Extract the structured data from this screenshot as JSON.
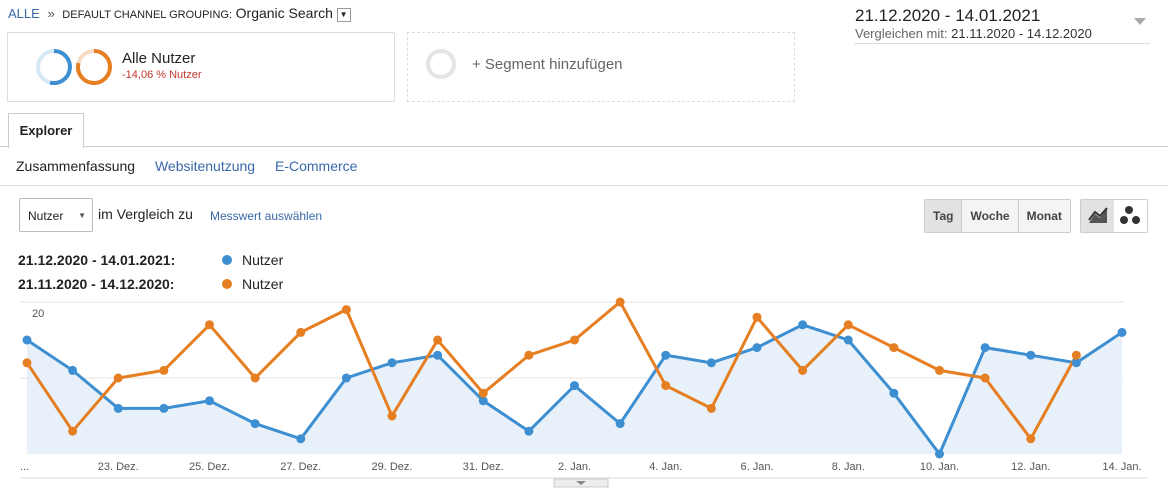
{
  "breadcrumb": {
    "root": "ALLE",
    "separator": "»",
    "dimension": "DEFAULT CHANNEL GROUPING:",
    "value": "Organic Search"
  },
  "segments": {
    "active": {
      "name": "Alle Nutzer",
      "change": "-14,06 % Nutzer"
    },
    "add": "+ Segment hinzufügen"
  },
  "date_range": {
    "current": "21.12.2020 - 14.01.2021",
    "compare_label": "Vergleichen mit:",
    "compare": "21.11.2020 - 14.12.2020"
  },
  "tabs": [
    "Explorer"
  ],
  "subtabs": [
    "Zusammenfassung",
    "Websitenutzung",
    "E-Commerce"
  ],
  "controls": {
    "metric": "Nutzer",
    "compare_text": "im Vergleich zu",
    "select_metric": "Messwert auswählen",
    "granularity": [
      "Tag",
      "Woche",
      "Monat"
    ]
  },
  "chart_data": {
    "type": "line",
    "categories": [
      "...",
      null,
      "23. Dez.",
      null,
      "25. Dez.",
      null,
      "27. Dez.",
      null,
      "29. Dez.",
      null,
      "31. Dez.",
      null,
      "2. Jan.",
      null,
      "4. Jan.",
      null,
      "6. Jan.",
      null,
      "8. Jan.",
      null,
      "10. Jan.",
      null,
      "12. Jan.",
      null,
      "14. Jan."
    ],
    "series": [
      {
        "period": "21.12.2020 - 14.01.2021:",
        "name": "Nutzer",
        "color": "#3d8fd1",
        "values": [
          15,
          11,
          6,
          6,
          7,
          4,
          2,
          10,
          12,
          13,
          7,
          3,
          9,
          4,
          13,
          12,
          14,
          17,
          15,
          8,
          0,
          14,
          13,
          12,
          16
        ]
      },
      {
        "period": "21.11.2020 - 14.12.2020:",
        "name": "Nutzer",
        "color": "#e67e22",
        "values": [
          12,
          3,
          10,
          11,
          17,
          10,
          16,
          19,
          5,
          15,
          8,
          13,
          15,
          20,
          9,
          6,
          18,
          11,
          17,
          14,
          11,
          10,
          2,
          13,
          null
        ]
      }
    ],
    "ylim": [
      0,
      20
    ],
    "yticks": [
      10,
      20
    ],
    "grid": true
  }
}
